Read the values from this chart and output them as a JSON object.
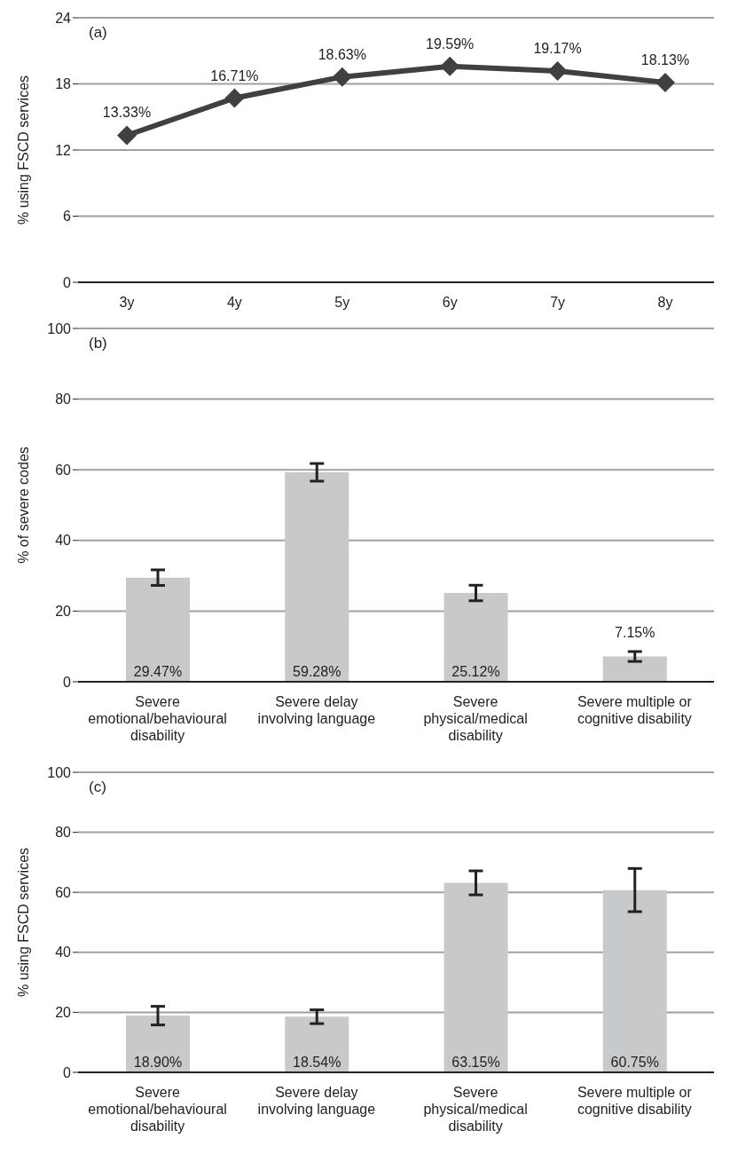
{
  "chart_data": [
    {
      "type": "line",
      "categories": [
        "3y",
        "4y",
        "5y",
        "6y",
        "7y",
        "8y"
      ],
      "values": [
        13.33,
        16.71,
        18.63,
        19.59,
        19.17,
        18.13
      ],
      "value_labels": [
        "13.33%",
        "16.71%",
        "18.63%",
        "19.59%",
        "19.17%",
        "18.13%"
      ],
      "color": "#404040",
      "marker": "diamond",
      "ylabel": "% using FSCD services",
      "ylim": [
        0,
        24
      ],
      "yticks": [
        0,
        6,
        12,
        18,
        24
      ],
      "grid": "y",
      "annotations": [
        "(a)"
      ]
    },
    {
      "type": "bar",
      "categories": [
        "Severe emotional/behavioural disability",
        "Severe delay involving language",
        "Severe physical/medical disability",
        "Severe multiple or cognitive disability"
      ],
      "values": [
        29.47,
        59.28,
        25.12,
        7.15
      ],
      "value_labels": [
        "29.47%",
        "59.28%",
        "25.12%",
        "7.15%"
      ],
      "errors": [
        2.2,
        2.5,
        2.2,
        1.4
      ],
      "color": "#c8c9cb",
      "ylabel": "% of severe codes",
      "ylim": [
        0,
        100
      ],
      "yticks": [
        0,
        20,
        40,
        60,
        80,
        100
      ],
      "grid": "y",
      "annotations": [
        "(b)"
      ]
    },
    {
      "type": "bar",
      "categories": [
        "Severe emotional/behavioural disability",
        "Severe delay involving language",
        "Severe physical/medical disability",
        "Severe multiple or cognitive disability"
      ],
      "values": [
        18.9,
        18.54,
        63.15,
        60.75
      ],
      "value_labels": [
        "18.90%",
        "18.54%",
        "63.15%",
        "60.75%"
      ],
      "errors": [
        3.1,
        2.3,
        4.0,
        7.2
      ],
      "color": "#c8c9cb",
      "ylabel": "% using FSCD services",
      "ylim": [
        0,
        100
      ],
      "yticks": [
        0,
        20,
        40,
        60,
        80,
        100
      ],
      "grid": "y",
      "annotations": [
        "(c)"
      ]
    }
  ]
}
